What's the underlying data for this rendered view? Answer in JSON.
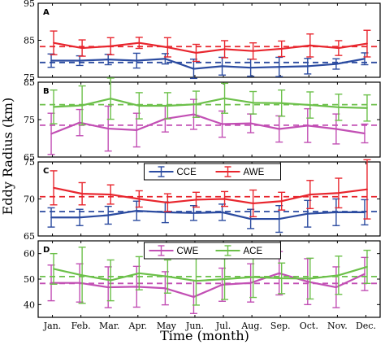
{
  "chart_data": {
    "type": "line",
    "xlabel": "Time (month)",
    "ylabel": "Eddy Radius (km)",
    "categories": [
      "Jan.",
      "Feb.",
      "Mar.",
      "Apr.",
      "May",
      "Jun.",
      "Jul.",
      "Aug.",
      "Sep.",
      "Oct.",
      "Nov.",
      "Dec."
    ],
    "colors": {
      "CCE": "#2b4ba0",
      "AWE": "#e8262e",
      "CWE": "#c24fb4",
      "ACE": "#6cc04a"
    },
    "panels": [
      {
        "letter": "A",
        "ylim": [
          75,
          95
        ],
        "yticks": [
          75,
          85,
          95
        ],
        "legend": false,
        "series": [
          {
            "name": "CCE",
            "values": [
              79.5,
              79.5,
              79.8,
              79.5,
              80.0,
              77.3,
              78.0,
              77.6,
              77.8,
              78.0,
              78.6,
              80.0
            ],
            "err": [
              1.8,
              1.3,
              1.4,
              2.0,
              1.4,
              2.6,
              2.4,
              2.3,
              2.6,
              2.1,
              1.4,
              1.6
            ],
            "mean": 79.0
          },
          {
            "name": "AWE",
            "values": [
              84.3,
              82.9,
              83.4,
              84.3,
              83.1,
              81.6,
              82.6,
              82.1,
              82.7,
              83.6,
              82.9,
              84.1
            ],
            "err": [
              3.2,
              2.2,
              2.3,
              1.5,
              2.6,
              2.3,
              2.3,
              2.2,
              2.1,
              3.1,
              2.0,
              3.6
            ],
            "mean": 83.3
          }
        ]
      },
      {
        "letter": "B",
        "ylim": [
          65,
          85
        ],
        "yticks": [
          65,
          75,
          85
        ],
        "legend": false,
        "series": [
          {
            "name": "CWE",
            "values": [
              71.2,
              74.2,
              72.6,
              72.2,
              75.2,
              76.4,
              73.8,
              74.0,
              72.5,
              73.4,
              72.5,
              71.3
            ],
            "err": [
              5.5,
              3.5,
              6.0,
              4.5,
              3.5,
              4.0,
              3.5,
              2.5,
              3.5,
              4.5,
              4.0,
              2.5
            ],
            "mean": 73.5
          },
          {
            "name": "ACE",
            "values": [
              78.4,
              78.8,
              80.6,
              78.7,
              78.7,
              79.1,
              80.7,
              79.5,
              79.4,
              78.9,
              78.3,
              78.1
            ],
            "err": [
              4.5,
              5.2,
              5.5,
              3.5,
              3.5,
              3.5,
              4.0,
              3.0,
              3.5,
              3.5,
              3.5,
              3.5
            ],
            "mean": 79.0
          }
        ]
      },
      {
        "letter": "C",
        "ylim": [
          65,
          75
        ],
        "yticks": [
          65,
          70,
          75
        ],
        "legend": true,
        "series": [
          {
            "name": "CCE",
            "values": [
              67.5,
              67.5,
              67.8,
              68.4,
              68.2,
              68.1,
              68.2,
              67.3,
              67.3,
              68.0,
              68.2,
              68.2
            ],
            "err": [
              1.3,
              1.1,
              1.2,
              1.3,
              1.4,
              1.0,
              1.1,
              1.3,
              1.8,
              1.8,
              1.8,
              1.7
            ],
            "mean": 68.3
          },
          {
            "name": "AWE",
            "values": [
              71.5,
              70.7,
              70.6,
              70.0,
              69.5,
              69.9,
              70.0,
              69.4,
              69.7,
              70.6,
              70.8,
              71.3
            ],
            "err": [
              2.3,
              1.5,
              1.3,
              1.1,
              1.2,
              1.0,
              1.0,
              1.8,
              1.2,
              1.9,
              2.0,
              4.0
            ],
            "mean": 70.3
          }
        ]
      },
      {
        "letter": "D",
        "ylim": [
          35,
          65
        ],
        "yticks": [
          40,
          50,
          60
        ],
        "legend": true,
        "series": [
          {
            "name": "CWE",
            "values": [
              48.5,
              48.5,
              46.8,
              47.0,
              46.4,
              43.0,
              47.8,
              48.5,
              52.3,
              49.0,
              46.8,
              52.0
            ],
            "err": [
              7.0,
              7.5,
              8.0,
              8.0,
              6.5,
              6.5,
              6.5,
              7.5,
              8.5,
              9.0,
              8.0,
              6.5
            ],
            "mean": 48.3
          },
          {
            "name": "ACE",
            "values": [
              54.0,
              51.5,
              49.5,
              52.3,
              51.0,
              49.3,
              50.0,
              50.8,
              50.3,
              50.2,
              51.5,
              54.8
            ],
            "err": [
              6.0,
              11.0,
              8.0,
              6.5,
              6.5,
              9.5,
              8.0,
              8.0,
              6.0,
              8.0,
              7.5,
              6.5
            ],
            "mean": 51.0
          }
        ]
      }
    ]
  }
}
